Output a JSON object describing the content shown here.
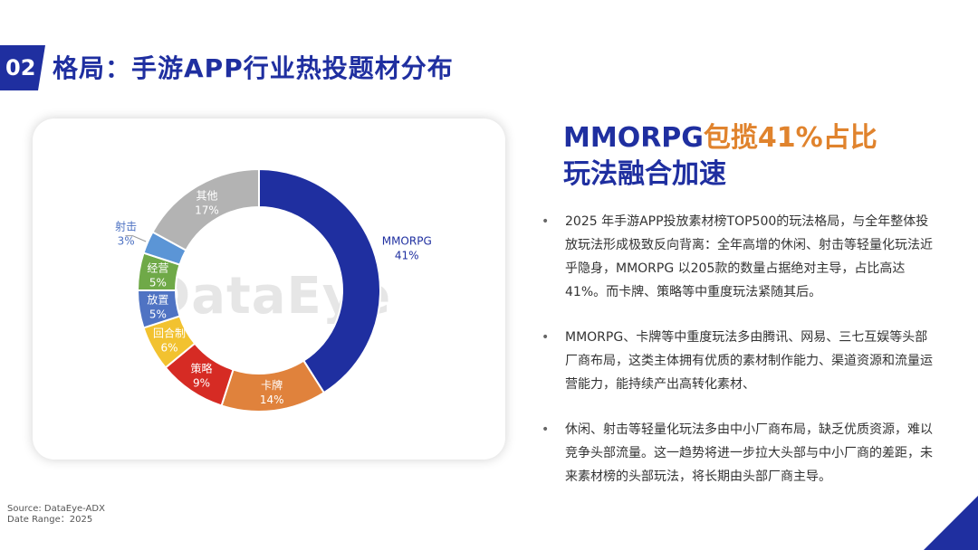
{
  "header": {
    "section_number": "02",
    "title": "格局：手游APP行业热投题材分布"
  },
  "watermark": "DataEye",
  "chart_data": {
    "type": "pie",
    "variant": "donut",
    "slices": [
      {
        "label": "MMORPG",
        "value": 41,
        "pct_label": "41%",
        "color": "#1f2fa0"
      },
      {
        "label": "卡牌",
        "value": 14,
        "pct_label": "14%",
        "color": "#e0823c"
      },
      {
        "label": "策略",
        "value": 9,
        "pct_label": "9%",
        "color": "#d62b24"
      },
      {
        "label": "回合制",
        "value": 6,
        "pct_label": "6%",
        "color": "#f2c230"
      },
      {
        "label": "放置",
        "value": 5,
        "pct_label": "5%",
        "color": "#4f73c3"
      },
      {
        "label": "经营",
        "value": 5,
        "pct_label": "5%",
        "color": "#6fa948"
      },
      {
        "label": "射击",
        "value": 3,
        "pct_label": "3%",
        "color": "#5b95d6"
      },
      {
        "label": "其他",
        "value": 17,
        "pct_label": "17%",
        "color": "#b3b3b3"
      }
    ]
  },
  "headline": {
    "line1_blue": "MMORPG",
    "line1_orange": "包揽41%占比",
    "line2": "玩法融合加速"
  },
  "bullets": [
    "2025 年手游APP投放素材榜TOP500的玩法格局，与全年整体投放玩法形成极致反向背离：全年高增的休闲、射击等轻量化玩法近乎隐身，MMORPG 以205款的数量占据绝对主导，占比高达41%。而卡牌、策略等中重度玩法紧随其后。",
    "MMORPG、卡牌等中重度玩法多由腾讯、网易、三七互娱等头部厂商布局，这类主体拥有优质的素材制作能力、渠道资源和流量运营能力，能持续产出高转化素材、",
    "休闲、射击等轻量化玩法多由中小厂商布局，缺乏优质资源，难以竞争头部流量。这一趋势将进一步拉大头部与中小厂商的差距，未来素材榜的头部玩法，将长期由头部厂商主导。"
  ],
  "footer": {
    "source": "Source: DataEye-ADX",
    "date_range": "Date Range：2025"
  }
}
